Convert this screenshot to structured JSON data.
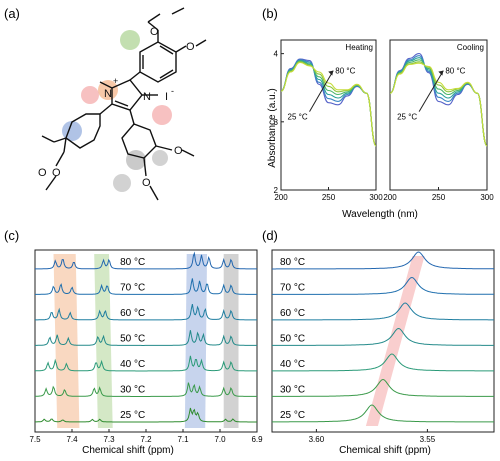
{
  "panel_labels": {
    "a": "(a)",
    "b": "(b)",
    "c": "(c)",
    "d": "(d)"
  },
  "molecule": {
    "n_methyl_left": "N",
    "n_methyl_right": "N",
    "plus": "+",
    "counterion": "I",
    "counterion_charge": "-",
    "methoxy": "O"
  },
  "chart_data": [
    {
      "id": "b-heating",
      "type": "line",
      "panel": "(b)",
      "title": "Heating",
      "xlabel": "Wavelength (nm)",
      "ylabel": "Absorbance (a.u.)",
      "xlim": [
        200,
        300
      ],
      "ylim": [
        2,
        4.2
      ],
      "xticks": [
        200,
        250,
        300
      ],
      "yticks": [
        2,
        3,
        4
      ],
      "annotations": {
        "top": "80 °C",
        "bottom": "25 °C"
      },
      "x": [
        200,
        210,
        220,
        230,
        240,
        250,
        260,
        270,
        280,
        290,
        300
      ],
      "series": [
        {
          "values": [
            3.45,
            3.78,
            3.92,
            3.9,
            3.55,
            3.28,
            3.25,
            3.38,
            3.52,
            3.42,
            2.65
          ],
          "color": "#5663c9"
        },
        {
          "values": [
            3.45,
            3.77,
            3.91,
            3.88,
            3.58,
            3.34,
            3.3,
            3.4,
            3.53,
            3.42,
            2.65
          ],
          "color": "#3a86c4"
        },
        {
          "values": [
            3.45,
            3.76,
            3.9,
            3.86,
            3.62,
            3.4,
            3.35,
            3.42,
            3.53,
            3.42,
            2.65
          ],
          "color": "#2aa39a"
        },
        {
          "values": [
            3.45,
            3.75,
            3.89,
            3.84,
            3.66,
            3.46,
            3.4,
            3.44,
            3.54,
            3.42,
            2.65
          ],
          "color": "#4ab56a"
        },
        {
          "values": [
            3.45,
            3.74,
            3.88,
            3.83,
            3.7,
            3.52,
            3.44,
            3.46,
            3.54,
            3.42,
            2.65
          ],
          "color": "#8cc63e"
        },
        {
          "values": [
            3.45,
            3.73,
            3.87,
            3.82,
            3.73,
            3.57,
            3.47,
            3.47,
            3.55,
            3.42,
            2.65
          ],
          "color": "#c6dc3a"
        }
      ]
    },
    {
      "id": "b-cooling",
      "type": "line",
      "panel": "(b)",
      "title": "Cooling",
      "xlabel": "Wavelength (nm)",
      "ylabel": "Absorbance (a.u.)",
      "xlim": [
        200,
        300
      ],
      "ylim": [
        2,
        4.2
      ],
      "xticks": [
        200,
        250,
        300
      ],
      "yticks": [
        2,
        3,
        4
      ],
      "annotations": {
        "top": "80 °C",
        "bottom": "25 °C"
      },
      "x": [
        200,
        210,
        220,
        230,
        240,
        250,
        260,
        270,
        280,
        290,
        300
      ],
      "series": [
        {
          "values": [
            3.42,
            3.75,
            3.93,
            4.0,
            3.72,
            3.3,
            3.25,
            3.4,
            3.55,
            3.42,
            2.65
          ],
          "color": "#5663c9"
        },
        {
          "values": [
            3.42,
            3.74,
            3.91,
            3.97,
            3.74,
            3.36,
            3.3,
            3.42,
            3.56,
            3.42,
            2.65
          ],
          "color": "#3a86c4"
        },
        {
          "values": [
            3.42,
            3.73,
            3.89,
            3.94,
            3.76,
            3.42,
            3.35,
            3.44,
            3.56,
            3.42,
            2.65
          ],
          "color": "#2aa39a"
        },
        {
          "values": [
            3.42,
            3.72,
            3.87,
            3.91,
            3.78,
            3.48,
            3.4,
            3.46,
            3.57,
            3.42,
            2.65
          ],
          "color": "#4ab56a"
        },
        {
          "values": [
            3.42,
            3.71,
            3.85,
            3.88,
            3.8,
            3.54,
            3.44,
            3.48,
            3.57,
            3.42,
            2.65
          ],
          "color": "#8cc63e"
        },
        {
          "values": [
            3.42,
            3.7,
            3.84,
            3.86,
            3.81,
            3.58,
            3.47,
            3.49,
            3.58,
            3.42,
            2.65
          ],
          "color": "#c6dc3a"
        }
      ]
    },
    {
      "id": "c-nmr",
      "type": "line",
      "panel": "(c)",
      "xlabel": "Chemical shift (ppm)",
      "xlim": [
        7.5,
        6.9
      ],
      "xticks": [
        7.5,
        7.4,
        7.3,
        7.2,
        7.1,
        7.0,
        6.9
      ],
      "xtick_labels": [
        "7.5",
        "7.4",
        "7.3",
        "7.2",
        "7.1",
        "7.0",
        "6.9"
      ],
      "grid": false,
      "highlight_bands": [
        {
          "from": 7.44,
          "to": 7.38,
          "color": "#f4b183",
          "shift": -0.01
        },
        {
          "from": 7.33,
          "to": 7.29,
          "color": "#a9d18e",
          "shift": -0.01
        },
        {
          "from": 7.095,
          "to": 7.04,
          "color": "#8faadc",
          "shift": 0.005
        },
        {
          "from": 6.99,
          "to": 6.95,
          "color": "#a6a6a6",
          "shift": 0.0
        }
      ],
      "series": [
        {
          "name": "25 °C",
          "color": "#2e8b2e",
          "peaks": [
            [
              7.475,
              0.15
            ],
            [
              7.455,
              0.18
            ],
            [
              7.425,
              0.12
            ],
            [
              7.345,
              0.14
            ],
            [
              7.325,
              0.15
            ],
            [
              7.08,
              0.7
            ],
            [
              7.07,
              0.6
            ],
            [
              7.06,
              0.45
            ],
            [
              6.985,
              0.15
            ],
            [
              6.965,
              0.16
            ]
          ]
        },
        {
          "name": "30 °C",
          "color": "#3a9a4a",
          "peaks": [
            [
              7.47,
              0.42
            ],
            [
              7.45,
              0.55
            ],
            [
              7.42,
              0.38
            ],
            [
              7.34,
              0.45
            ],
            [
              7.325,
              0.47
            ],
            [
              7.085,
              0.75
            ],
            [
              7.07,
              0.6
            ],
            [
              7.055,
              0.5
            ],
            [
              6.99,
              0.45
            ],
            [
              6.97,
              0.48
            ]
          ]
        },
        {
          "name": "40 °C",
          "color": "#2a9a78",
          "peaks": [
            [
              7.465,
              0.45
            ],
            [
              7.445,
              0.58
            ],
            [
              7.415,
              0.4
            ],
            [
              7.335,
              0.48
            ],
            [
              7.32,
              0.5
            ],
            [
              7.08,
              0.8
            ],
            [
              7.065,
              0.65
            ],
            [
              7.05,
              0.55
            ],
            [
              6.99,
              0.48
            ],
            [
              6.97,
              0.5
            ]
          ]
        },
        {
          "name": "50 °C",
          "color": "#238a8a",
          "peaks": [
            [
              7.46,
              0.45
            ],
            [
              7.44,
              0.58
            ],
            [
              7.41,
              0.4
            ],
            [
              7.33,
              0.48
            ],
            [
              7.315,
              0.5
            ],
            [
              7.08,
              0.82
            ],
            [
              7.06,
              0.68
            ],
            [
              7.045,
              0.58
            ],
            [
              6.99,
              0.5
            ],
            [
              6.97,
              0.52
            ]
          ]
        },
        {
          "name": "60 °C",
          "color": "#1f7ea0",
          "peaks": [
            [
              7.455,
              0.45
            ],
            [
              7.435,
              0.58
            ],
            [
              7.405,
              0.4
            ],
            [
              7.325,
              0.48
            ],
            [
              7.31,
              0.5
            ],
            [
              7.075,
              0.85
            ],
            [
              7.06,
              0.7
            ],
            [
              7.04,
              0.6
            ],
            [
              6.99,
              0.5
            ],
            [
              6.97,
              0.52
            ]
          ]
        },
        {
          "name": "70 °C",
          "color": "#1f6fae",
          "peaks": [
            [
              7.45,
              0.45
            ],
            [
              7.43,
              0.58
            ],
            [
              7.4,
              0.4
            ],
            [
              7.32,
              0.48
            ],
            [
              7.305,
              0.5
            ],
            [
              7.075,
              0.88
            ],
            [
              7.055,
              0.72
            ],
            [
              7.035,
              0.62
            ],
            [
              6.99,
              0.5
            ],
            [
              6.97,
              0.52
            ]
          ]
        },
        {
          "name": "80 °C",
          "color": "#2367b0",
          "peaks": [
            [
              7.445,
              0.45
            ],
            [
              7.425,
              0.58
            ],
            [
              7.395,
              0.4
            ],
            [
              7.315,
              0.48
            ],
            [
              7.3,
              0.5
            ],
            [
              7.07,
              0.9
            ],
            [
              7.05,
              0.74
            ],
            [
              7.03,
              0.64
            ],
            [
              6.99,
              0.5
            ],
            [
              6.97,
              0.52
            ]
          ]
        }
      ]
    },
    {
      "id": "d-nmr",
      "type": "line",
      "panel": "(d)",
      "xlabel": "Chemical shift (ppm)",
      "xlim": [
        3.62,
        3.52
      ],
      "xticks": [
        3.6,
        3.55
      ],
      "xtick_labels": [
        "3.60",
        "3.55"
      ],
      "grid": false,
      "highlight_band": {
        "color": "#f4a6a6"
      },
      "series": [
        {
          "name": "25 °C",
          "peak": 3.575,
          "color": "#3a9a4a"
        },
        {
          "name": "30 °C",
          "peak": 3.57,
          "color": "#3a9a4a"
        },
        {
          "name": "40 °C",
          "peak": 3.566,
          "color": "#2a9a78"
        },
        {
          "name": "50 °C",
          "peak": 3.563,
          "color": "#238a8a"
        },
        {
          "name": "60 °C",
          "peak": 3.56,
          "color": "#1f7ea0"
        },
        {
          "name": "70 °C",
          "peak": 3.557,
          "color": "#1f6fae"
        },
        {
          "name": "80 °C",
          "peak": 3.554,
          "color": "#2367b0"
        }
      ]
    }
  ]
}
